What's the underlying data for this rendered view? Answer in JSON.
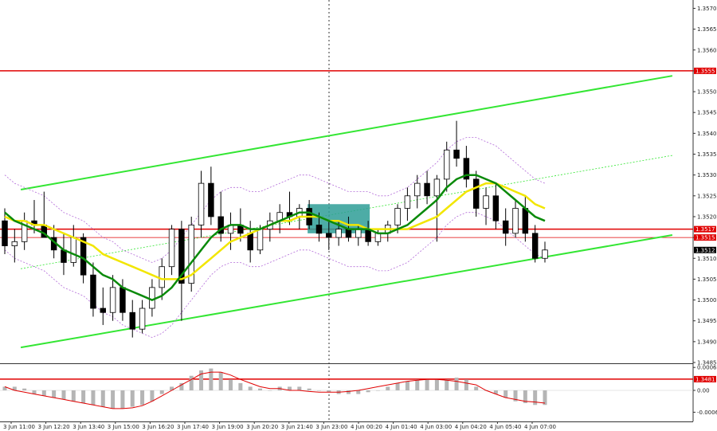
{
  "chart_data": {
    "type": "candlestick",
    "instrument_timeframe_hint": "",
    "price_axis": {
      "ylim": [
        1.3485,
        1.3572
      ],
      "ticks": [
        "1.3570",
        "1.3565",
        "1.3560",
        "1.3555",
        "1.3550",
        "1.3545",
        "1.3540",
        "1.3535",
        "1.3530",
        "1.3525",
        "1.3520",
        "1.3515",
        "1.3510",
        "1.3505",
        "1.3500",
        "1.3495",
        "1.3490",
        "1.3485"
      ]
    },
    "time_axis": {
      "labels": [
        "3 Jun 11:00",
        "3 Jun 12:20",
        "3 Jun 13:40",
        "3 Jun 15:00",
        "3 Jun 16:20",
        "3 Jun 17:40",
        "3 Jun 19:00",
        "3 Jun 20:20",
        "3 Jun 21:40",
        "3 Jun 23:00",
        "4 Jun 00:20",
        "4 Jun 01:40",
        "4 Jun 03:00",
        "4 Jun 04:20",
        "4 Jun 05:40",
        "4 Jun 07:00"
      ]
    },
    "levels": [
      {
        "value": 1.3555,
        "label": "1.3555",
        "color": "#e00000"
      },
      {
        "value": 1.3517,
        "label": "1.3517",
        "color": "#e00000"
      },
      {
        "value": 1.3515,
        "label": "1.3515",
        "color": "#e00000"
      },
      {
        "value": 1.3481,
        "label": "1.3481",
        "color": "#e00000"
      }
    ],
    "current_price": {
      "value": 1.3512,
      "label": "1.3512"
    },
    "channel": {
      "upper": [
        [
          0.03,
          1.35265
        ],
        [
          0.97,
          1.35538
        ]
      ],
      "lower": [
        [
          0.03,
          1.34886
        ],
        [
          0.97,
          1.35156
        ]
      ],
      "mid_dotted": [
        [
          0.03,
          1.35075
        ],
        [
          0.97,
          1.35347
        ]
      ],
      "color": "#33e633"
    },
    "entry_box": {
      "x_start_index": 31,
      "x_end_index": 37,
      "price_top": 1.3523,
      "price_bottom": 1.3516,
      "color": "#2e9e96"
    },
    "candles": [
      [
        1.3519,
        1.3522,
        1.3511,
        1.3513
      ],
      [
        1.3513,
        1.3517,
        1.3509,
        1.3514
      ],
      [
        1.3514,
        1.3521,
        1.3512,
        1.3519
      ],
      [
        1.3519,
        1.3524,
        1.3516,
        1.3518
      ],
      [
        1.3518,
        1.3526,
        1.3515,
        1.3515
      ],
      [
        1.3515,
        1.3518,
        1.351,
        1.3512
      ],
      [
        1.3512,
        1.3516,
        1.3506,
        1.3509
      ],
      [
        1.3509,
        1.3518,
        1.3508,
        1.3515
      ],
      [
        1.3515,
        1.3516,
        1.3504,
        1.3506
      ],
      [
        1.3506,
        1.3509,
        1.3496,
        1.3498
      ],
      [
        1.3498,
        1.3503,
        1.3494,
        1.3497
      ],
      [
        1.3497,
        1.3506,
        1.3495,
        1.3503
      ],
      [
        1.3503,
        1.3505,
        1.3495,
        1.3497
      ],
      [
        1.3497,
        1.35,
        1.3491,
        1.3493
      ],
      [
        1.3493,
        1.35,
        1.3492,
        1.3498
      ],
      [
        1.3498,
        1.3505,
        1.3496,
        1.3503
      ],
      [
        1.3503,
        1.351,
        1.35,
        1.3508
      ],
      [
        1.3508,
        1.3518,
        1.3506,
        1.3517
      ],
      [
        1.3517,
        1.3519,
        1.3495,
        1.3504
      ],
      [
        1.3504,
        1.352,
        1.3502,
        1.3518
      ],
      [
        1.3518,
        1.3531,
        1.3515,
        1.3528
      ],
      [
        1.3528,
        1.3532,
        1.3518,
        1.352
      ],
      [
        1.352,
        1.3526,
        1.3514,
        1.3516
      ],
      [
        1.3516,
        1.3521,
        1.3512,
        1.3518
      ],
      [
        1.3518,
        1.3522,
        1.3514,
        1.3516
      ],
      [
        1.3516,
        1.3519,
        1.3509,
        1.3512
      ],
      [
        1.3512,
        1.3518,
        1.3511,
        1.3517
      ],
      [
        1.3517,
        1.3521,
        1.3514,
        1.3519
      ],
      [
        1.3519,
        1.3523,
        1.3516,
        1.3521
      ],
      [
        1.3521,
        1.3526,
        1.3518,
        1.352
      ],
      [
        1.352,
        1.3523,
        1.3517,
        1.3522
      ],
      [
        1.3522,
        1.3524,
        1.3517,
        1.3518
      ],
      [
        1.3518,
        1.3521,
        1.3514,
        1.3516
      ],
      [
        1.3516,
        1.3519,
        1.3512,
        1.3515
      ],
      [
        1.3515,
        1.3519,
        1.3513,
        1.3517
      ],
      [
        1.3517,
        1.352,
        1.3514,
        1.3515
      ],
      [
        1.3515,
        1.3518,
        1.3513,
        1.3517
      ],
      [
        1.3517,
        1.3519,
        1.3513,
        1.3514
      ],
      [
        1.3514,
        1.3517,
        1.3513,
        1.3516
      ],
      [
        1.3516,
        1.3519,
        1.3514,
        1.3518
      ],
      [
        1.3518,
        1.3523,
        1.3516,
        1.3522
      ],
      [
        1.3522,
        1.3527,
        1.3519,
        1.3525
      ],
      [
        1.3525,
        1.353,
        1.3522,
        1.3528
      ],
      [
        1.3528,
        1.3531,
        1.3523,
        1.3525
      ],
      [
        1.3525,
        1.353,
        1.3514,
        1.3529
      ],
      [
        1.3529,
        1.3538,
        1.3526,
        1.3536
      ],
      [
        1.3536,
        1.3543,
        1.3532,
        1.3534
      ],
      [
        1.3534,
        1.3537,
        1.3527,
        1.3529
      ],
      [
        1.3529,
        1.3531,
        1.352,
        1.3522
      ],
      [
        1.3522,
        1.3527,
        1.3518,
        1.3525
      ],
      [
        1.3525,
        1.3528,
        1.3517,
        1.3519
      ],
      [
        1.3519,
        1.3522,
        1.3513,
        1.3516
      ],
      [
        1.3516,
        1.3524,
        1.3515,
        1.3522
      ],
      [
        1.3522,
        1.3525,
        1.3514,
        1.3516
      ],
      [
        1.3516,
        1.3518,
        1.3509,
        1.351
      ],
      [
        1.351,
        1.3514,
        1.3509,
        1.3512
      ]
    ],
    "ma_green": [
      1.3521,
      1.3519,
      1.3518,
      1.3517,
      1.3516,
      1.3514,
      1.3512,
      1.3511,
      1.351,
      1.3508,
      1.3506,
      1.3505,
      1.3503,
      1.3502,
      1.3501,
      1.35,
      1.3501,
      1.3503,
      1.3506,
      1.3509,
      1.3512,
      1.3515,
      1.3517,
      1.3518,
      1.3518,
      1.3517,
      1.3517,
      1.3518,
      1.3519,
      1.352,
      1.3521,
      1.3521,
      1.352,
      1.3519,
      1.3518,
      1.3517,
      1.3517,
      1.3517,
      1.3516,
      1.3516,
      1.3517,
      1.3518,
      1.352,
      1.3522,
      1.3524,
      1.3527,
      1.3529,
      1.353,
      1.353,
      1.3529,
      1.3528,
      1.3526,
      1.3524,
      1.3522,
      1.352,
      1.3519
    ],
    "ma_yellow": [
      1.352,
      1.3519,
      1.3519,
      1.3518,
      1.3518,
      1.3517,
      1.3516,
      1.3515,
      1.3514,
      1.3513,
      1.3511,
      1.351,
      1.3509,
      1.3508,
      1.3507,
      1.3506,
      1.3505,
      1.3505,
      1.3505,
      1.3506,
      1.3508,
      1.351,
      1.3512,
      1.3514,
      1.3515,
      1.3516,
      1.3517,
      1.3518,
      1.3519,
      1.3519,
      1.352,
      1.352,
      1.352,
      1.3519,
      1.3519,
      1.3518,
      1.3518,
      1.3517,
      1.3517,
      1.3517,
      1.3517,
      1.3517,
      1.3518,
      1.3519,
      1.352,
      1.3522,
      1.3524,
      1.3526,
      1.3527,
      1.3528,
      1.3528,
      1.3527,
      1.3526,
      1.3525,
      1.3523,
      1.3522
    ],
    "oscillator": {
      "ticks": [
        "0.00063",
        "0.00",
        "-0.0006"
      ],
      "ylim": [
        -0.0007,
        0.0007
      ],
      "bars": [
        0.0001,
        0.0001,
        5e-05,
        -0.0001,
        -0.00015,
        -0.0002,
        -0.00025,
        -0.0003,
        -0.00035,
        -0.0004,
        -0.00045,
        -0.0005,
        -0.0005,
        -0.00045,
        -0.0004,
        -0.0003,
        -0.0001,
        0.0001,
        0.0002,
        0.0004,
        0.00055,
        0.0006,
        0.0005,
        0.0003,
        0.0002,
        0.0001,
        5e-05,
        0.0,
        0.0001,
        0.0001,
        0.0001,
        5e-05,
        0.0,
        -5e-05,
        -0.0001,
        -0.0001,
        -0.0001,
        -5e-05,
        0.0,
        0.0001,
        0.0002,
        0.00025,
        0.0003,
        0.0003,
        0.0003,
        0.0003,
        0.00035,
        0.0003,
        0.0001,
        0.0,
        -0.0001,
        -0.0002,
        -0.0003,
        -0.00035,
        -0.0004,
        -0.0004
      ],
      "signal": [
        0.0001,
        0.0,
        -5e-05,
        -0.0001,
        -0.00015,
        -0.0002,
        -0.00025,
        -0.0003,
        -0.00035,
        -0.0004,
        -0.00045,
        -0.0005,
        -0.0005,
        -0.00048,
        -0.00042,
        -0.0003,
        -0.00015,
        0.0,
        0.00015,
        0.0003,
        0.00045,
        0.0005,
        0.0005,
        0.00042,
        0.0003,
        0.0002,
        0.0001,
        5e-05,
        5e-05,
        0.0,
        0.0,
        -3e-05,
        -5e-05,
        -5e-05,
        -5e-05,
        -3e-05,
        0.0,
        5e-05,
        0.0001,
        0.00015,
        0.0002,
        0.00025,
        0.00028,
        0.0003,
        0.0003,
        0.00028,
        0.00025,
        0.0002,
        0.00015,
        0.0,
        -0.0001,
        -0.0002,
        -0.00025,
        -0.0003,
        -0.00032,
        -0.00035
      ]
    }
  }
}
